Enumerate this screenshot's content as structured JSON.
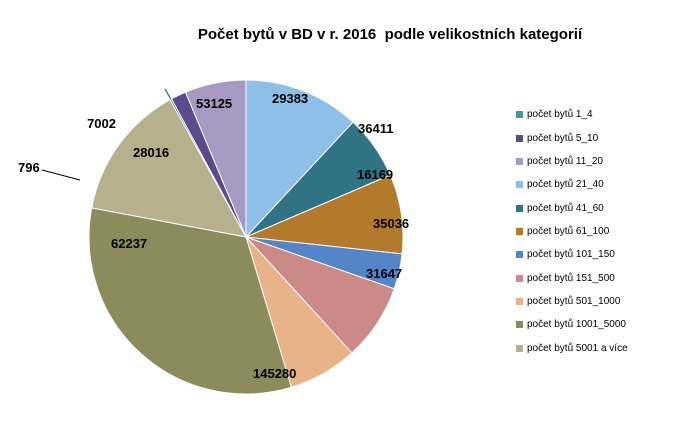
{
  "chart_data": {
    "type": "pie",
    "title": "Počet bytů v BD v r. 2016  podle velikostních kategorií",
    "legend_position": "right",
    "slices": [
      {
        "name": "počet bytů 1_4",
        "value": 0,
        "color": "#3f9a92"
      },
      {
        "name": "počet bytů 5_10",
        "value": 7002,
        "color": "#5b4a8c"
      },
      {
        "name": "počet bytů 11_20",
        "value": 28016,
        "color": "#a899c2"
      },
      {
        "name": "počet bytů 21_40",
        "value": 53125,
        "color": "#8ebfe9"
      },
      {
        "name": "počet bytů 41_60",
        "value": 29383,
        "color": "#2f7385"
      },
      {
        "name": "počet bytů 61_100",
        "value": 36411,
        "color": "#b47a2c"
      },
      {
        "name": "počet bytů 101_150",
        "value": 16169,
        "color": "#5486c7"
      },
      {
        "name": "počet bytů 151_500",
        "value": 35036,
        "color": "#cb8a87"
      },
      {
        "name": "počet bytů 501_1000",
        "value": 31647,
        "color": "#e9b38a"
      },
      {
        "name": "počet bytů 1001_5000",
        "value": 145280,
        "color": "#8b8b5c"
      },
      {
        "name": "počet bytů 5001 a více",
        "value": 62237,
        "color": "#b7b08c"
      }
    ],
    "exploded_slice": {
      "label": "796",
      "value": 796,
      "color": "#2f7a73"
    }
  }
}
